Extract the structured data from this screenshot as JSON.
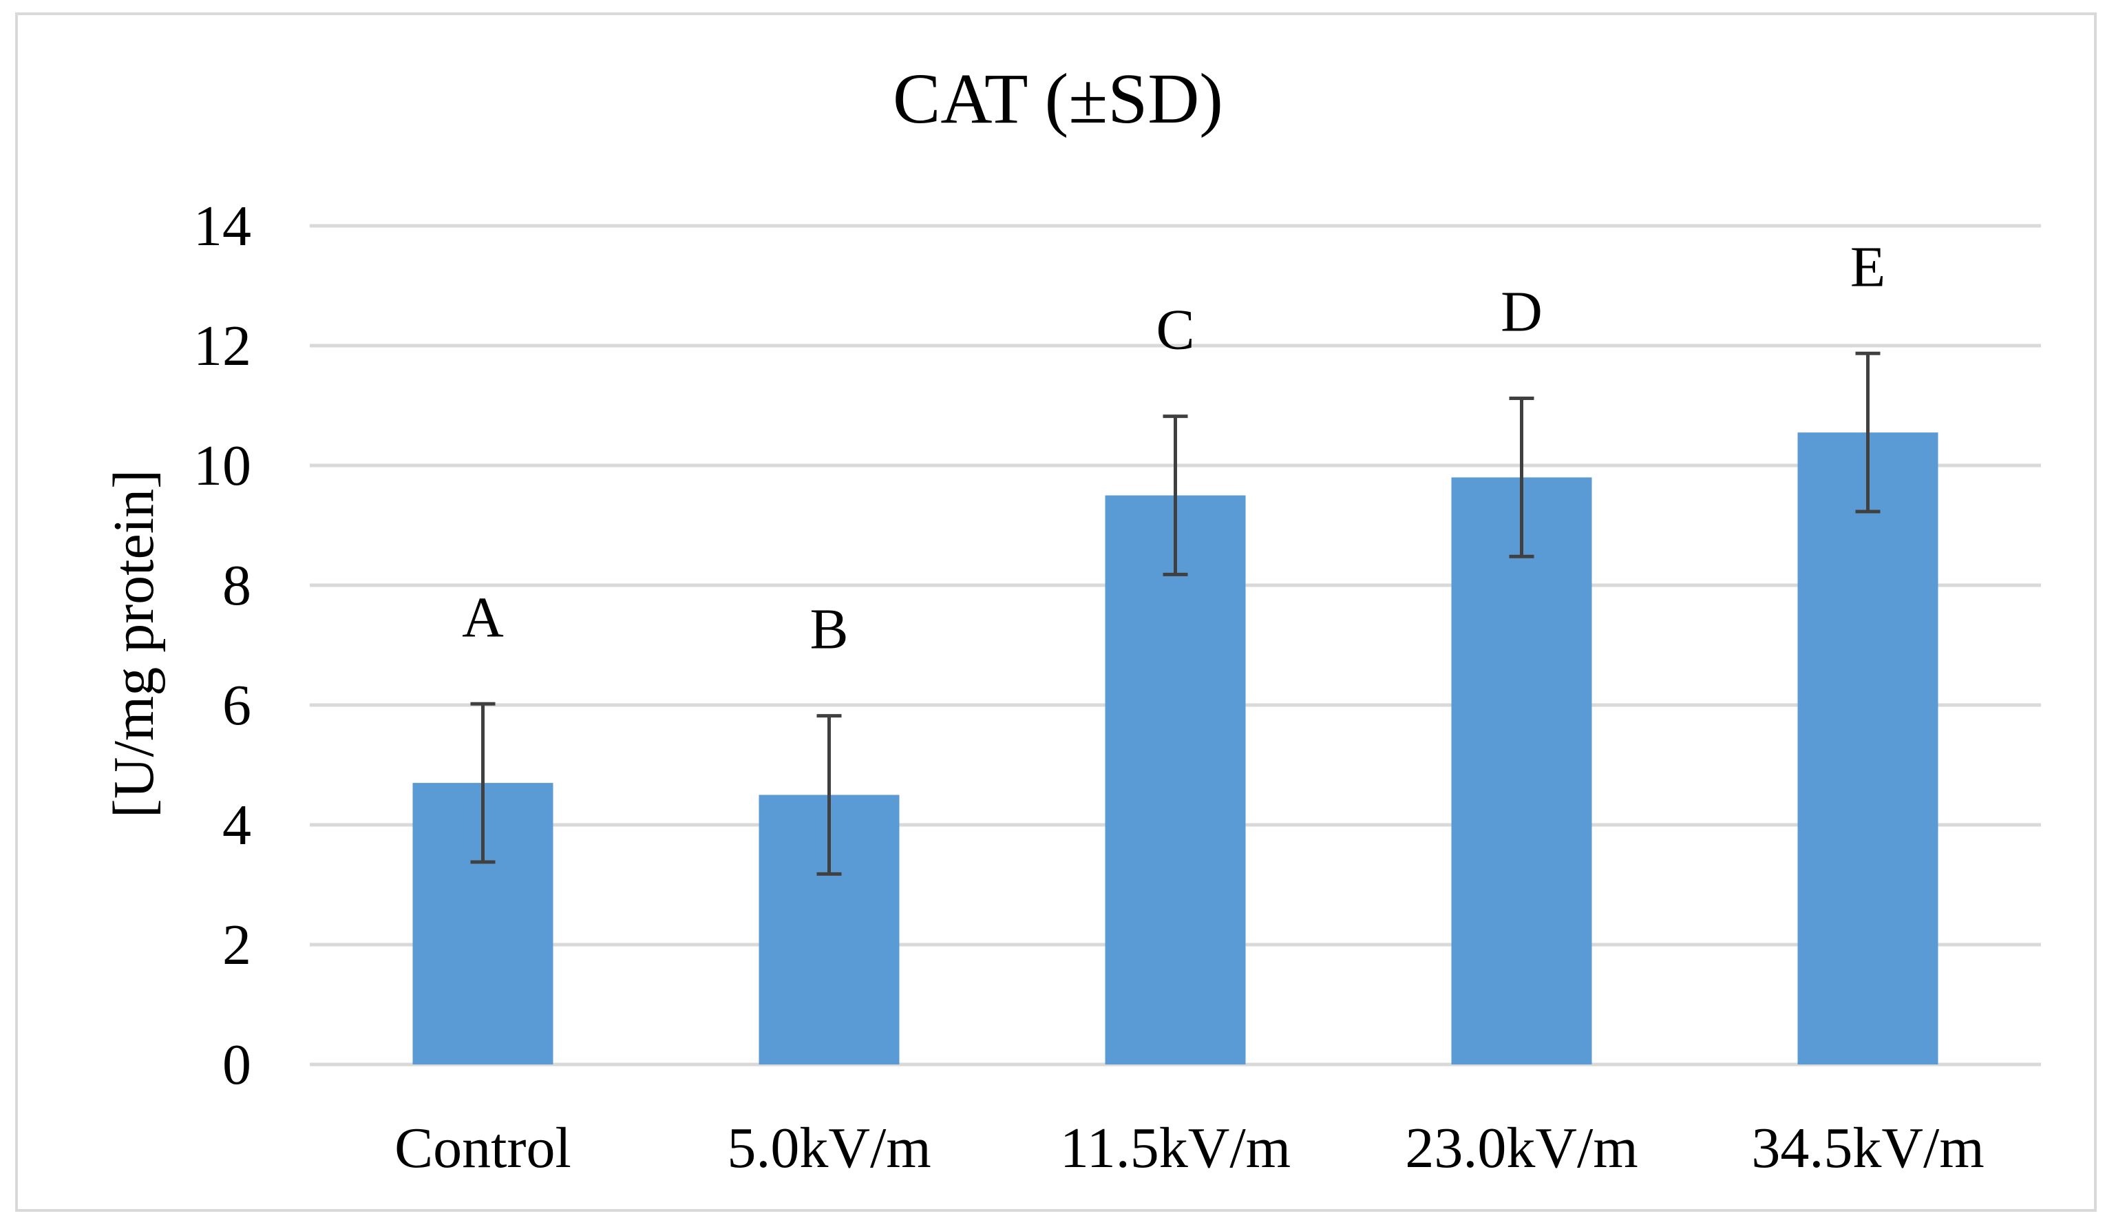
{
  "chart_data": {
    "type": "bar",
    "title": "CAT (±SD)",
    "xlabel": "",
    "ylabel": "[U/mg protein]",
    "ylim": [
      0,
      14
    ],
    "yticks": [
      0,
      2,
      4,
      6,
      8,
      10,
      12,
      14
    ],
    "ytick_labels": [
      "0",
      "2",
      "4",
      "6",
      "8",
      "10",
      "12",
      "14"
    ],
    "grid": true,
    "legend": "none",
    "categories": [
      "Control",
      "5.0kV/m",
      "11.5kV/m",
      "23.0kV/m",
      "34.5kV/m"
    ],
    "series": [
      {
        "name": "CAT",
        "values": [
          4.7,
          4.5,
          9.5,
          9.8,
          10.55
        ],
        "error": [
          1.32,
          1.32,
          1.32,
          1.32,
          1.32
        ],
        "significance_labels": [
          "A",
          "B",
          "C",
          "D",
          "E"
        ]
      }
    ],
    "colors": {
      "bar": "#5b9bd5",
      "error_bar": "#404040",
      "grid": "#d9d9d9",
      "frame": "#d9d9d9"
    }
  }
}
